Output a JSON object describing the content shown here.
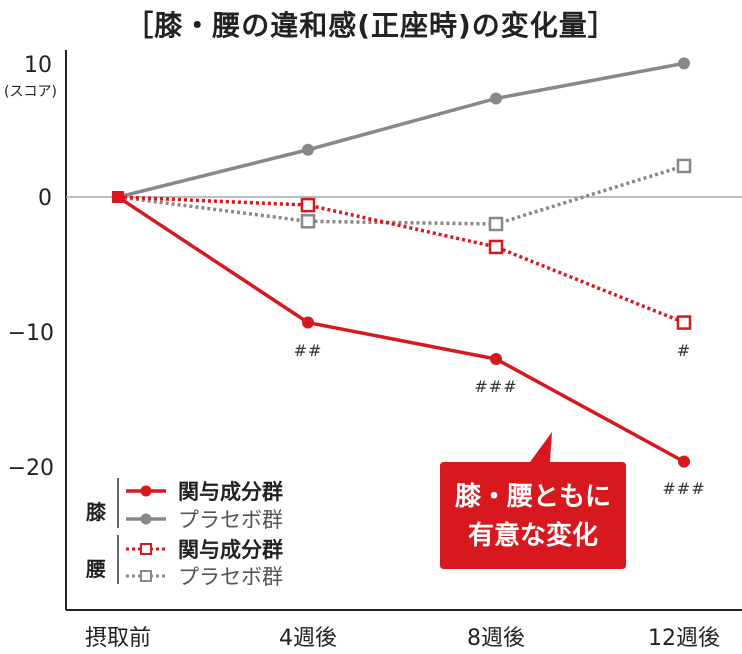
{
  "chart_data": {
    "type": "line",
    "title": "［膝・腰の違和感(正座時)の変化量］",
    "ylabel": "(スコア)",
    "categories": [
      "摂取前",
      "4週後",
      "8週後",
      "12週後"
    ],
    "ylim": [
      -25,
      10
    ],
    "yticks": [
      "10",
      "0",
      "−10",
      "−20"
    ],
    "series": [
      {
        "group": "膝",
        "name": "関与成分群",
        "color": "#d7191f",
        "style": "solid",
        "marker": "filled-circle",
        "values": [
          0,
          -9.3,
          -12,
          -19.6
        ]
      },
      {
        "group": "膝",
        "name": "プラセボ群",
        "color": "#888888",
        "style": "solid",
        "marker": "filled-circle",
        "values": [
          0,
          3.5,
          7.3,
          9.9
        ]
      },
      {
        "group": "腰",
        "name": "関与成分群",
        "color": "#d7191f",
        "style": "dotted",
        "marker": "open-square",
        "values": [
          0,
          -0.6,
          -3.7,
          -9.3
        ]
      },
      {
        "group": "腰",
        "name": "プラセボ群",
        "color": "#888888",
        "style": "dotted",
        "marker": "open-square",
        "values": [
          0,
          -1.8,
          -2,
          2.3
        ]
      }
    ],
    "annotations": [
      {
        "text": "##",
        "category": "4週後"
      },
      {
        "text": "###",
        "category": "8週後"
      },
      {
        "text": "#",
        "category": "12週後"
      },
      {
        "text": "###",
        "category": "12週後"
      }
    ],
    "callout": [
      "膝・腰ともに",
      "有意な変化"
    ],
    "legend": {
      "placement": "bottom-left",
      "groups": [
        {
          "label": "膝",
          "entries": [
            "関与成分群",
            "プラセボ群"
          ]
        },
        {
          "label": "腰",
          "entries": [
            "関与成分群",
            "プラセボ群"
          ]
        }
      ]
    }
  }
}
